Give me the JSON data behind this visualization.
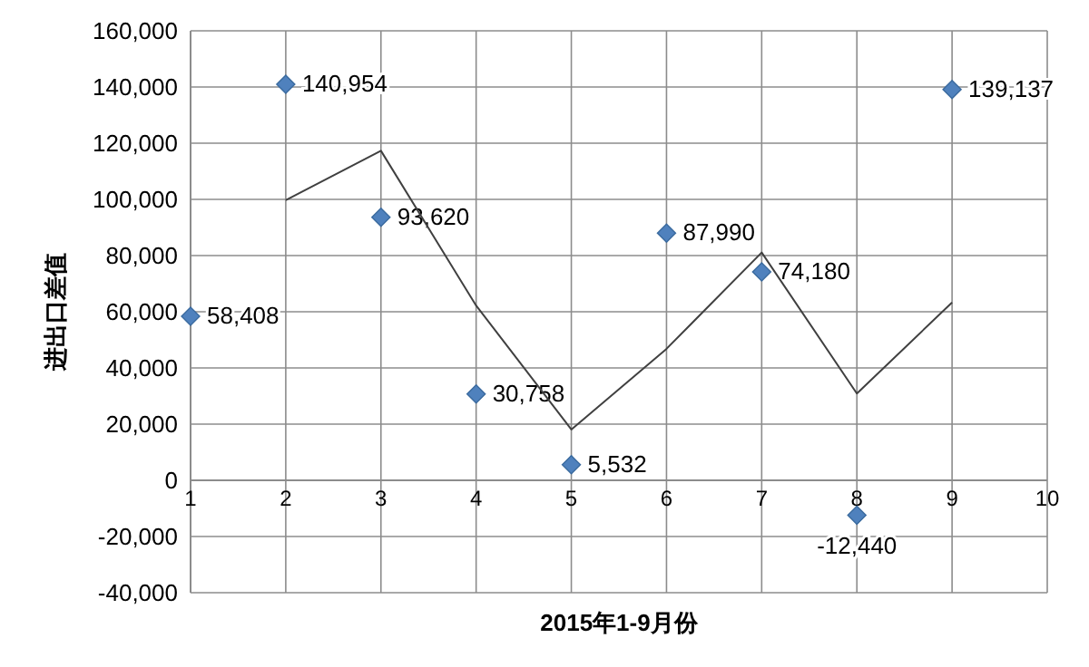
{
  "chart_data": {
    "type": "scatter",
    "xlabel": "2015年1-9月份",
    "ylabel": "进出口差值",
    "x": [
      1,
      2,
      3,
      4,
      5,
      6,
      7,
      8,
      9
    ],
    "xlim": [
      1,
      10
    ],
    "xticks": [
      1,
      2,
      3,
      4,
      5,
      6,
      7,
      8,
      9,
      10
    ],
    "ylim": [
      -40000,
      160000
    ],
    "yticks": [
      {
        "value": -40000,
        "label": "-40,000"
      },
      {
        "value": -20000,
        "label": "-20,000"
      },
      {
        "value": 0,
        "label": "0"
      },
      {
        "value": 20000,
        "label": "20,000"
      },
      {
        "value": 40000,
        "label": "40,000"
      },
      {
        "value": 60000,
        "label": "60,000"
      },
      {
        "value": 80000,
        "label": "80,000"
      },
      {
        "value": 100000,
        "label": "100,000"
      },
      {
        "value": 120000,
        "label": "120,000"
      },
      {
        "value": 140000,
        "label": "140,000"
      },
      {
        "value": 160000,
        "label": "160,000"
      }
    ],
    "grid": true,
    "series": [
      {
        "marker": "diamond",
        "color": "#4f81bd",
        "values": [
          58408,
          140954,
          93620,
          30758,
          5532,
          87990,
          74180,
          -12440,
          139137
        ],
        "value_labels": [
          "58,408",
          "140,954",
          "93,620",
          "30,758",
          "5,532",
          "87,990",
          "74,180",
          "-12,440",
          "139,137"
        ]
      },
      {
        "type": "line",
        "marker": "none",
        "color": "#404040",
        "x": [
          2,
          3,
          4,
          5,
          6,
          7,
          8,
          9
        ],
        "values": [
          99700,
          117300,
          62200,
          18100,
          46800,
          81100,
          30900,
          63300
        ]
      }
    ]
  }
}
